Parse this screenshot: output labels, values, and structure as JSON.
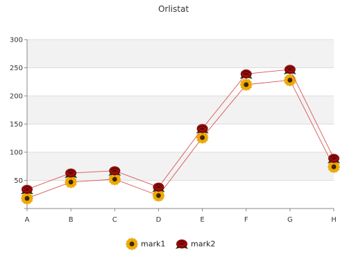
{
  "chart_data": {
    "type": "line",
    "title": "Orlistat",
    "xlabel": "",
    "ylabel": "",
    "categories": [
      "A",
      "B",
      "C",
      "D",
      "E",
      "F",
      "G",
      "H"
    ],
    "ylim": [
      0,
      300
    ],
    "yticks": [
      50,
      100,
      150,
      200,
      250,
      300
    ],
    "grid": true,
    "legend_position": "bottom",
    "series": [
      {
        "name": "mark1",
        "values": [
          18,
          47,
          52,
          23,
          126,
          220,
          228,
          74
        ],
        "line_color": "#d9534f",
        "marker_icon": "sunflower-icon"
      },
      {
        "name": "mark2",
        "values": [
          34,
          63,
          67,
          38,
          142,
          239,
          247,
          89
        ],
        "line_color": "#d9534f",
        "marker_icon": "rose-icon"
      }
    ],
    "colors": {
      "band": "#f2f2f2",
      "gridline": "#dddddd",
      "axis": "#888888"
    }
  }
}
